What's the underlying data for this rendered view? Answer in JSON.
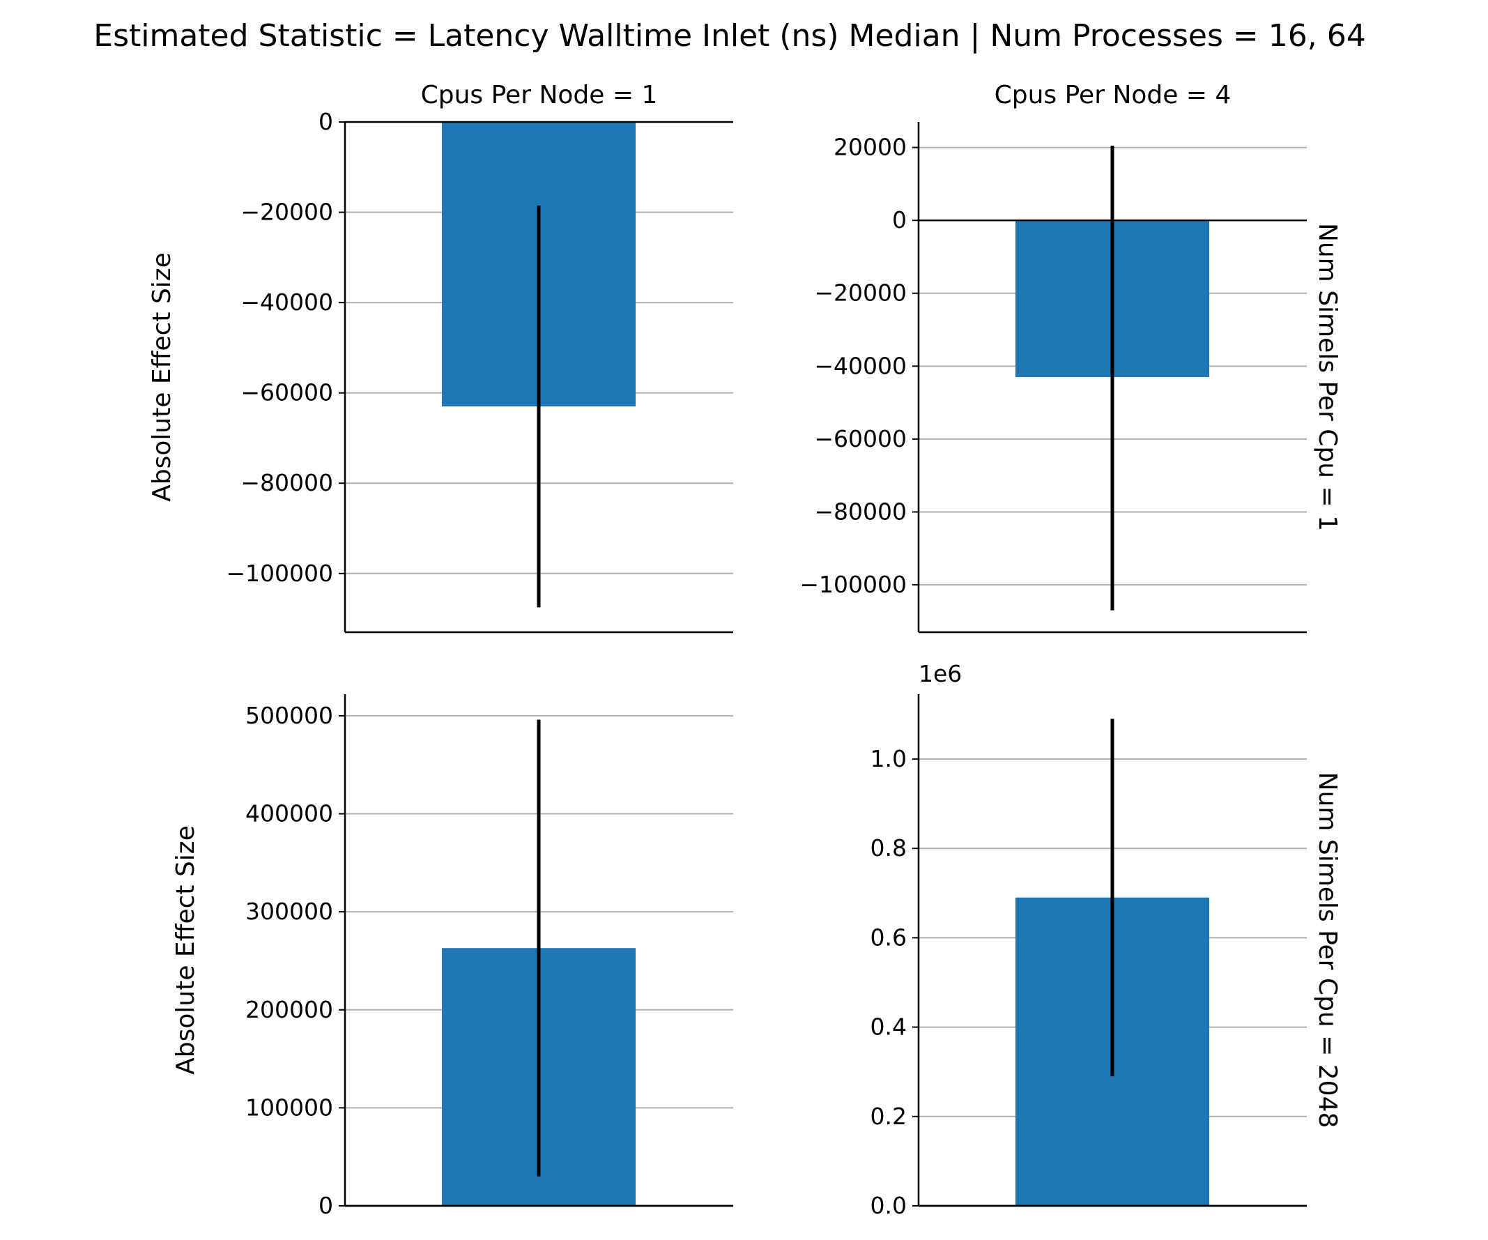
{
  "title": "Estimated Statistic = Latency Walltime Inlet (ns) Median | Num Processes = 16, 64",
  "colors": {
    "bar": "#1f77b4",
    "errorbar": "#000000",
    "grid": "#b0b0b0",
    "axis": "#000000"
  },
  "chart_data": [
    {
      "type": "bar",
      "col_title": "Cpus Per Node = 1",
      "row_title": "",
      "ylabel": "Absolute Effect Size",
      "ylim": [
        -113000,
        0
      ],
      "yticks": [
        0,
        -20000,
        -40000,
        -60000,
        -80000,
        -100000
      ],
      "ytick_labels": [
        "0",
        "−20000",
        "−40000",
        "−60000",
        "−80000",
        "−100000"
      ],
      "offset_label": "",
      "value": -63000,
      "ci": [
        -107500,
        -18500
      ]
    },
    {
      "type": "bar",
      "col_title": "Cpus Per Node = 4",
      "row_title": "Num Simels Per Cpu = 1",
      "ylabel": "",
      "ylim": [
        -113000,
        27000
      ],
      "yticks": [
        20000,
        0,
        -20000,
        -40000,
        -60000,
        -80000,
        -100000
      ],
      "ytick_labels": [
        "20000",
        "0",
        "−20000",
        "−40000",
        "−60000",
        "−80000",
        "−100000"
      ],
      "offset_label": "",
      "value": -43000,
      "ci": [
        -107000,
        20500
      ]
    },
    {
      "type": "bar",
      "col_title": "",
      "row_title": "",
      "ylabel": "Absolute Effect Size",
      "ylim": [
        0,
        522000
      ],
      "yticks": [
        0,
        100000,
        200000,
        300000,
        400000,
        500000
      ],
      "ytick_labels": [
        "0",
        "100000",
        "200000",
        "300000",
        "400000",
        "500000"
      ],
      "offset_label": "",
      "value": 263000,
      "ci": [
        30000,
        496000
      ]
    },
    {
      "type": "bar",
      "col_title": "",
      "row_title": "Num Simels Per Cpu = 2048",
      "ylabel": "",
      "ylim": [
        0,
        1.145
      ],
      "yticks": [
        0.0,
        0.2,
        0.4,
        0.6,
        0.8,
        1.0
      ],
      "ytick_labels": [
        "0.0",
        "0.2",
        "0.4",
        "0.6",
        "0.8",
        "1.0"
      ],
      "offset_label": "1e6",
      "value": 0.69,
      "ci": [
        0.29,
        1.09
      ]
    }
  ]
}
